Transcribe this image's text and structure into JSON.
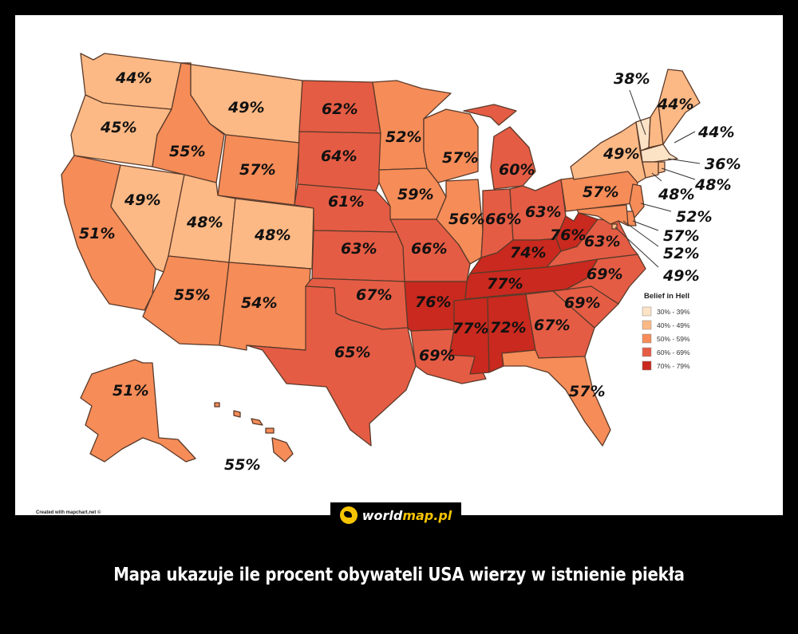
{
  "legend": {
    "title": "Belief in Hell",
    "items": [
      {
        "label": "30% - 39%",
        "color": "#fde3c6"
      },
      {
        "label": "40% - 49%",
        "color": "#fdb985"
      },
      {
        "label": "50% - 59%",
        "color": "#f68c58"
      },
      {
        "label": "60% - 69%",
        "color": "#e55c44"
      },
      {
        "label": "70% - 79%",
        "color": "#c9291e"
      }
    ]
  },
  "credit": "Created with mapchart.net ©",
  "logo": {
    "part1": "world",
    "part2": "map.pl"
  },
  "caption": "Mapa ukazuje ile procent obywateli USA wierzy w istnienie piekła",
  "states": {
    "WA": {
      "label": "44%",
      "value": 44
    },
    "OR": {
      "label": "45%",
      "value": 45
    },
    "CA": {
      "label": "51%",
      "value": 51
    },
    "NV": {
      "label": "49%",
      "value": 49
    },
    "ID": {
      "label": "55%",
      "value": 55
    },
    "MT": {
      "label": "49%",
      "value": 49
    },
    "WY": {
      "label": "57%",
      "value": 57
    },
    "UT": {
      "label": "48%",
      "value": 48
    },
    "CO": {
      "label": "48%",
      "value": 48
    },
    "AZ": {
      "label": "55%",
      "value": 55
    },
    "NM": {
      "label": "54%",
      "value": 54
    },
    "ND": {
      "label": "62%",
      "value": 62
    },
    "SD": {
      "label": "64%",
      "value": 64
    },
    "NE": {
      "label": "61%",
      "value": 61
    },
    "KS": {
      "label": "63%",
      "value": 63
    },
    "OK": {
      "label": "67%",
      "value": 67
    },
    "TX": {
      "label": "65%",
      "value": 65
    },
    "MN": {
      "label": "52%",
      "value": 52
    },
    "IA": {
      "label": "59%",
      "value": 59
    },
    "MO": {
      "label": "66%",
      "value": 66
    },
    "AR": {
      "label": "76%",
      "value": 76
    },
    "LA": {
      "label": "69%",
      "value": 69
    },
    "WI": {
      "label": "57%",
      "value": 57
    },
    "IL": {
      "label": "56%",
      "value": 56
    },
    "MI": {
      "label": "60%",
      "value": 60
    },
    "IN": {
      "label": "66%",
      "value": 66
    },
    "OH": {
      "label": "63%",
      "value": 63
    },
    "KY": {
      "label": "74%",
      "value": 74
    },
    "TN": {
      "label": "77%",
      "value": 77
    },
    "MS": {
      "label": "77%",
      "value": 77
    },
    "AL": {
      "label": "72%",
      "value": 72
    },
    "GA": {
      "label": "67%",
      "value": 67
    },
    "FL": {
      "label": "57%",
      "value": 57
    },
    "SC": {
      "label": "69%",
      "value": 69
    },
    "NC": {
      "label": "69%",
      "value": 69
    },
    "VA": {
      "label": "63%",
      "value": 63
    },
    "WV": {
      "label": "76%",
      "value": 76
    },
    "PA": {
      "label": "57%",
      "value": 57
    },
    "NY": {
      "label": "49%",
      "value": 49
    },
    "VT": {
      "label": "38%",
      "value": 38
    },
    "ME": {
      "label": "44%",
      "value": 44
    },
    "NH": {
      "label": "44%",
      "value": 44
    },
    "MA": {
      "label": "36%",
      "value": 36
    },
    "RI": {
      "label": "48%",
      "value": 48
    },
    "CT": {
      "label": "48%",
      "value": 48
    },
    "NJ": {
      "label": "52%",
      "value": 52
    },
    "DE": {
      "label": "57%",
      "value": 57
    },
    "MD": {
      "label": "52%",
      "value": 52
    },
    "DC": {
      "label": "49%",
      "value": 49
    },
    "AK": {
      "label": "51%",
      "value": 51
    },
    "HI": {
      "label": "55%",
      "value": 55
    }
  }
}
